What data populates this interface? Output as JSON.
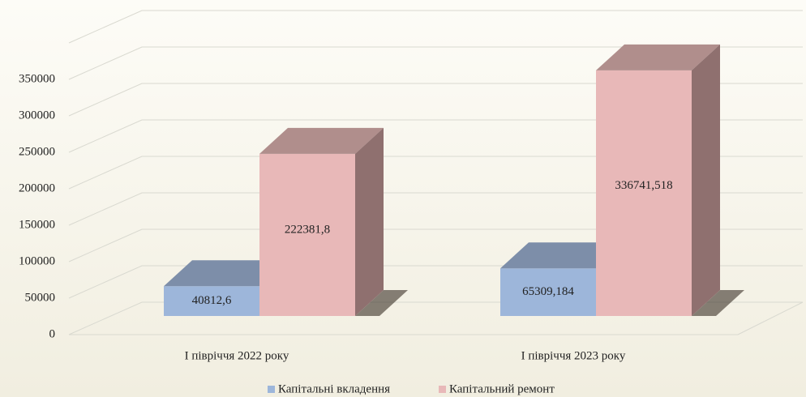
{
  "chart_data": {
    "type": "bar3d",
    "categories": [
      "І півріччя 2022 року",
      "І півріччя 2023 року"
    ],
    "series": [
      {
        "name": "Капітальні вкладення",
        "color": "#9db6da",
        "values": [
          40812.6,
          65309.184
        ],
        "value_labels": [
          "40812,6",
          "65309,184"
        ]
      },
      {
        "name": "Капітальний ремонт",
        "color": "#e8b8b8",
        "values": [
          222381.8,
          336741.518
        ],
        "value_labels": [
          "222381,8",
          "336741,518"
        ]
      }
    ],
    "ylim": [
      0,
      400000
    ],
    "yticks": [
      0,
      50000,
      100000,
      150000,
      200000,
      250000,
      300000,
      350000
    ],
    "grid": true,
    "legend": "bottom"
  }
}
